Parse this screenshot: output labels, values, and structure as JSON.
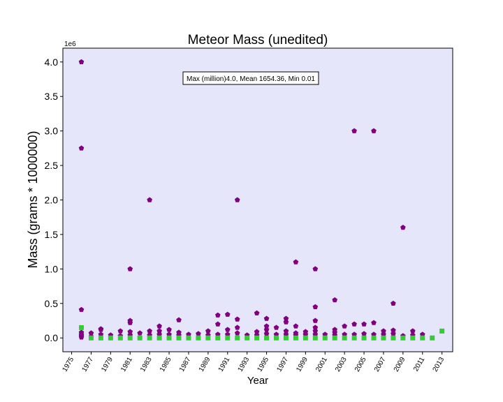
{
  "chart_data": {
    "type": "scatter",
    "title": "Meteor Mass (unedited)",
    "xlabel": "Year",
    "ylabel": "Mass (grams * 1000000)",
    "y_offset_label": "1e6",
    "annotation": "Max (million)4.0, Mean 1654.36, Min 0.01",
    "xlim": [
      1974.1,
      2014.1
    ],
    "ylim": [
      -0.2,
      4.2
    ],
    "x_ticks": [
      1975,
      1977,
      1979,
      1981,
      1983,
      1985,
      1987,
      1989,
      1991,
      1993,
      1995,
      1997,
      1999,
      2001,
      2003,
      2005,
      2007,
      2009,
      2011,
      2013
    ],
    "y_ticks": [
      0.0,
      0.5,
      1.0,
      1.5,
      2.0,
      2.5,
      3.0,
      3.5,
      4.0
    ],
    "y_tick_labels": [
      "0.0",
      "0.5",
      "1.0",
      "1.5",
      "2.0",
      "2.5",
      "3.0",
      "3.5",
      "4.0"
    ],
    "background": "#e6e6fa",
    "grid": false,
    "series": [
      {
        "marker": "pentagon",
        "color": "#800080",
        "points": [
          [
            1976,
            4.0
          ],
          [
            1976,
            2.75
          ],
          [
            1976,
            0.41
          ],
          [
            1976,
            0.08
          ],
          [
            1976,
            0.05
          ],
          [
            1976,
            0.03
          ],
          [
            1976,
            0.01
          ],
          [
            1977,
            0.07
          ],
          [
            1977,
            0.02
          ],
          [
            1978,
            0.13
          ],
          [
            1978,
            0.12
          ],
          [
            1978,
            0.05
          ],
          [
            1979,
            0.04
          ],
          [
            1980,
            0.1
          ],
          [
            1980,
            0.03
          ],
          [
            1981,
            1.0
          ],
          [
            1981,
            0.25
          ],
          [
            1981,
            0.22
          ],
          [
            1981,
            0.09
          ],
          [
            1981,
            0.04
          ],
          [
            1982,
            0.07
          ],
          [
            1983,
            2.0
          ],
          [
            1983,
            0.1
          ],
          [
            1983,
            0.04
          ],
          [
            1984,
            0.17
          ],
          [
            1984,
            0.1
          ],
          [
            1984,
            0.05
          ],
          [
            1985,
            0.12
          ],
          [
            1985,
            0.05
          ],
          [
            1986,
            0.26
          ],
          [
            1986,
            0.08
          ],
          [
            1986,
            0.04
          ],
          [
            1987,
            0.05
          ],
          [
            1988,
            0.06
          ],
          [
            1989,
            0.1
          ],
          [
            1989,
            0.04
          ],
          [
            1990,
            0.33
          ],
          [
            1990,
            0.2
          ],
          [
            1990,
            0.05
          ],
          [
            1991,
            0.34
          ],
          [
            1991,
            0.12
          ],
          [
            1991,
            0.05
          ],
          [
            1992,
            2.0
          ],
          [
            1992,
            0.27
          ],
          [
            1992,
            0.15
          ],
          [
            1992,
            0.07
          ],
          [
            1993,
            0.04
          ],
          [
            1994,
            0.36
          ],
          [
            1994,
            0.09
          ],
          [
            1994,
            0.04
          ],
          [
            1995,
            0.28
          ],
          [
            1995,
            0.17
          ],
          [
            1995,
            0.12
          ],
          [
            1995,
            0.06
          ],
          [
            1996,
            0.15
          ],
          [
            1996,
            0.05
          ],
          [
            1997,
            0.28
          ],
          [
            1997,
            0.23
          ],
          [
            1997,
            0.1
          ],
          [
            1997,
            0.05
          ],
          [
            1998,
            1.1
          ],
          [
            1998,
            0.17
          ],
          [
            1998,
            0.07
          ],
          [
            1998,
            0.04
          ],
          [
            1999,
            0.09
          ],
          [
            1999,
            0.05
          ],
          [
            2000,
            1.0
          ],
          [
            2000,
            0.45
          ],
          [
            2000,
            0.25
          ],
          [
            2000,
            0.15
          ],
          [
            2000,
            0.1
          ],
          [
            2000,
            0.05
          ],
          [
            2001,
            0.05
          ],
          [
            2002,
            0.55
          ],
          [
            2002,
            0.12
          ],
          [
            2002,
            0.08
          ],
          [
            2002,
            0.04
          ],
          [
            2003,
            0.17
          ],
          [
            2003,
            0.05
          ],
          [
            2004,
            3.0
          ],
          [
            2004,
            0.2
          ],
          [
            2004,
            0.05
          ],
          [
            2005,
            0.2
          ],
          [
            2005,
            0.06
          ],
          [
            2006,
            3.0
          ],
          [
            2006,
            0.22
          ],
          [
            2006,
            0.05
          ],
          [
            2007,
            0.1
          ],
          [
            2007,
            0.05
          ],
          [
            2008,
            0.5
          ],
          [
            2008,
            0.11
          ],
          [
            2008,
            0.06
          ],
          [
            2009,
            1.6
          ],
          [
            2009,
            0.03
          ],
          [
            2010,
            0.1
          ],
          [
            2010,
            0.04
          ],
          [
            2011,
            0.05
          ]
        ]
      },
      {
        "marker": "square",
        "color": "#32cd32",
        "points": [
          [
            1976,
            0.15
          ],
          [
            1977,
            0.0
          ],
          [
            1978,
            0.0
          ],
          [
            1979,
            0.0
          ],
          [
            1980,
            0.0
          ],
          [
            1981,
            0.0
          ],
          [
            1982,
            0.0
          ],
          [
            1983,
            0.0
          ],
          [
            1984,
            0.0
          ],
          [
            1985,
            0.0
          ],
          [
            1986,
            0.0
          ],
          [
            1987,
            0.0
          ],
          [
            1988,
            0.0
          ],
          [
            1989,
            0.0
          ],
          [
            1990,
            0.0
          ],
          [
            1991,
            0.0
          ],
          [
            1992,
            0.0
          ],
          [
            1993,
            0.0
          ],
          [
            1994,
            0.0
          ],
          [
            1995,
            0.0
          ],
          [
            1996,
            0.0
          ],
          [
            1997,
            0.0
          ],
          [
            1998,
            0.0
          ],
          [
            1999,
            0.0
          ],
          [
            2000,
            0.0
          ],
          [
            2001,
            0.0
          ],
          [
            2002,
            0.0
          ],
          [
            2003,
            0.0
          ],
          [
            2004,
            0.0
          ],
          [
            2005,
            0.0
          ],
          [
            2006,
            0.0
          ],
          [
            2007,
            0.0
          ],
          [
            2008,
            0.0
          ],
          [
            2009,
            0.0
          ],
          [
            2010,
            0.0
          ],
          [
            2011,
            0.0
          ],
          [
            2012,
            0.0
          ],
          [
            2013,
            0.1
          ]
        ]
      }
    ]
  }
}
